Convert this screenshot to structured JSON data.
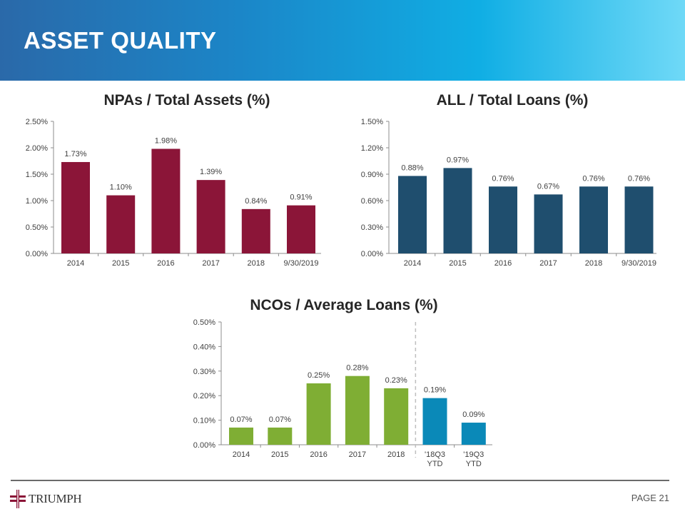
{
  "header": {
    "title": "ASSET QUALITY"
  },
  "footer": {
    "logo_text": "TRIUMPH",
    "page": "PAGE 21"
  },
  "colors": {
    "npa": "#8b1538",
    "all": "#1f4e6e",
    "nco_green": "#7fae34",
    "nco_blue": "#0a89b8"
  },
  "chart_data": [
    {
      "type": "bar",
      "title": "NPAs / Total Assets (%)",
      "categories": [
        "2014",
        "2015",
        "2016",
        "2017",
        "2018",
        "9/30/2019"
      ],
      "values": [
        1.73,
        1.1,
        1.98,
        1.39,
        0.84,
        0.91
      ],
      "labels": [
        "1.73%",
        "1.10%",
        "1.98%",
        "1.39%",
        "0.84%",
        "0.91%"
      ],
      "ylim": [
        0,
        2.5
      ],
      "yticks": [
        "0.00%",
        "0.50%",
        "1.00%",
        "1.50%",
        "2.00%",
        "2.50%"
      ],
      "colors": [
        "#8b1538",
        "#8b1538",
        "#8b1538",
        "#8b1538",
        "#8b1538",
        "#8b1538"
      ]
    },
    {
      "type": "bar",
      "title": "ALL / Total Loans (%)",
      "categories": [
        "2014",
        "2015",
        "2016",
        "2017",
        "2018",
        "9/30/2019"
      ],
      "values": [
        0.88,
        0.97,
        0.76,
        0.67,
        0.76,
        0.76
      ],
      "labels": [
        "0.88%",
        "0.97%",
        "0.76%",
        "0.67%",
        "0.76%",
        "0.76%"
      ],
      "ylim": [
        0,
        1.5
      ],
      "yticks": [
        "0.00%",
        "0.30%",
        "0.60%",
        "0.90%",
        "1.20%",
        "1.50%"
      ],
      "colors": [
        "#1f4e6e",
        "#1f4e6e",
        "#1f4e6e",
        "#1f4e6e",
        "#1f4e6e",
        "#1f4e6e"
      ]
    },
    {
      "type": "bar",
      "title": "NCOs / Average Loans (%)",
      "categories": [
        "2014",
        "2015",
        "2016",
        "2017",
        "2018",
        "'18Q3|YTD",
        "'19Q3|YTD"
      ],
      "values": [
        0.07,
        0.07,
        0.25,
        0.28,
        0.23,
        0.19,
        0.09
      ],
      "labels": [
        "0.07%",
        "0.07%",
        "0.25%",
        "0.28%",
        "0.23%",
        "0.19%",
        "0.09%"
      ],
      "ylim": [
        0,
        0.5
      ],
      "yticks": [
        "0.00%",
        "0.10%",
        "0.20%",
        "0.30%",
        "0.40%",
        "0.50%"
      ],
      "colors": [
        "#7fae34",
        "#7fae34",
        "#7fae34",
        "#7fae34",
        "#7fae34",
        "#0a89b8",
        "#0a89b8"
      ],
      "divider_after": 4
    }
  ]
}
